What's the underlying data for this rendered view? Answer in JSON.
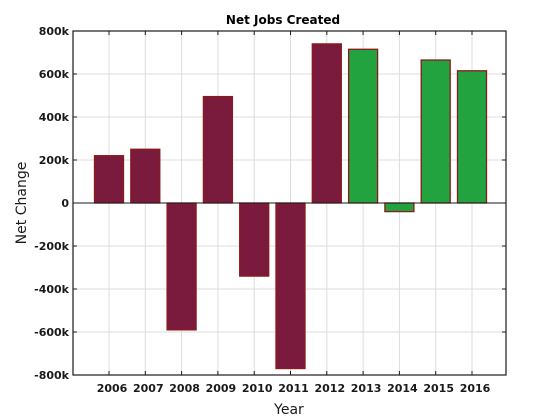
{
  "chart_data": {
    "type": "bar",
    "title": "Net Jobs Created",
    "xlabel": "Year",
    "ylabel": "Net Change",
    "categories": [
      "2006",
      "2007",
      "2008",
      "2009",
      "2010",
      "2011",
      "2012",
      "2013",
      "2014",
      "2015",
      "2016"
    ],
    "values": [
      220000,
      250000,
      -590000,
      495000,
      -340000,
      -770000,
      740000,
      715000,
      -40000,
      665000,
      615000
    ],
    "bar_colors": [
      "#7a1a3c",
      "#7a1a3c",
      "#7a1a3c",
      "#7a1a3c",
      "#7a1a3c",
      "#7a1a3c",
      "#7a1a3c",
      "#22a340",
      "#22a340",
      "#22a340",
      "#22a340"
    ],
    "bar_edge_color": "#8b1a1a",
    "ylim": [
      -800000,
      800000
    ],
    "yticks": [
      -800000,
      -600000,
      -400000,
      -200000,
      0,
      200000,
      400000,
      600000,
      800000
    ],
    "ytick_labels": [
      "-800k",
      "-600k",
      "-400k",
      "-200k",
      "0",
      "200k",
      "400k",
      "600k",
      "800k"
    ],
    "grid": true
  }
}
